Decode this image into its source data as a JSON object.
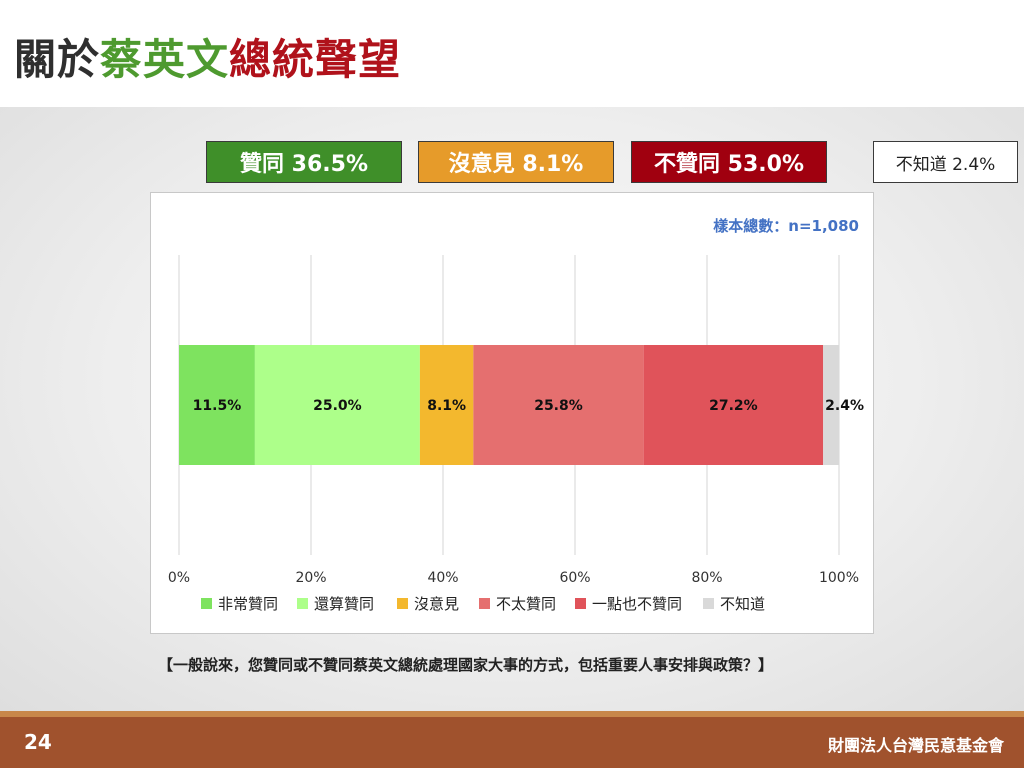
{
  "title": {
    "part1": "關於",
    "part2": "蔡英文",
    "part3": "總統聲望"
  },
  "colors": {
    "title_dark": "#2f2f2f",
    "title_green": "#4e9a2f",
    "title_red": "#b0121b"
  },
  "summary": [
    {
      "label": "贊同 36.5%",
      "bg": "#3f8f29",
      "fg": "#ffffff"
    },
    {
      "label": "沒意見 8.1%",
      "bg": "#e69b2a",
      "fg": "#ffffff"
    },
    {
      "label": "不贊同 53.0%",
      "bg": "#a0000f",
      "fg": "#ffffff"
    },
    {
      "label": "不知道 2.4%",
      "bg": "#ffffff",
      "fg": "#222222"
    }
  ],
  "sample_note": "樣本總數：n=1,080",
  "chart_data": {
    "type": "bar",
    "orientation": "horizontal-stacked",
    "xlim": [
      0,
      100
    ],
    "x_ticks": [
      "0%",
      "20%",
      "40%",
      "60%",
      "80%",
      "100%"
    ],
    "grid": true,
    "legend_position": "bottom",
    "series": [
      {
        "name": "非常贊同",
        "value": 11.5,
        "label": "11.5%",
        "color": "#7ee35f"
      },
      {
        "name": "還算贊同",
        "value": 25.0,
        "label": "25.0%",
        "color": "#adff8a"
      },
      {
        "name": "沒意見",
        "value": 8.1,
        "label": "8.1%",
        "color": "#f3b82e"
      },
      {
        "name": "不太贊同",
        "value": 25.8,
        "label": "25.8%",
        "color": "#e56f6f"
      },
      {
        "name": "一點也不贊同",
        "value": 27.2,
        "label": "27.2%",
        "color": "#e0535a"
      },
      {
        "name": "不知道",
        "value": 2.4,
        "label": "2.4%",
        "color": "#d9d9d9"
      }
    ]
  },
  "question": "【一般說來，您贊同或不贊同蔡英文總統處理國家大事的方式，包括重要人事安排與政策？】",
  "footer": {
    "page_number": "24",
    "organization": "財團法人台灣民意基金會"
  }
}
